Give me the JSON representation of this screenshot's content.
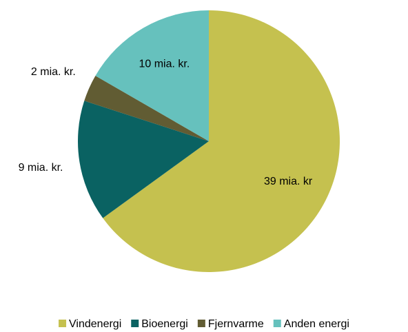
{
  "chart_data": {
    "type": "pie",
    "categories": [
      "Vindenergi",
      "Bioenergi",
      "Fjernvarme",
      "Anden energi"
    ],
    "values": [
      39,
      9,
      2,
      10
    ],
    "value_labels": [
      "39 mia. kr",
      "9 mia. kr.",
      "2 mia. kr.",
      "10 mia. kr."
    ],
    "colors": [
      "#c5c14f",
      "#0a6262",
      "#615c33",
      "#66c1bd"
    ],
    "legend": "bottom"
  }
}
